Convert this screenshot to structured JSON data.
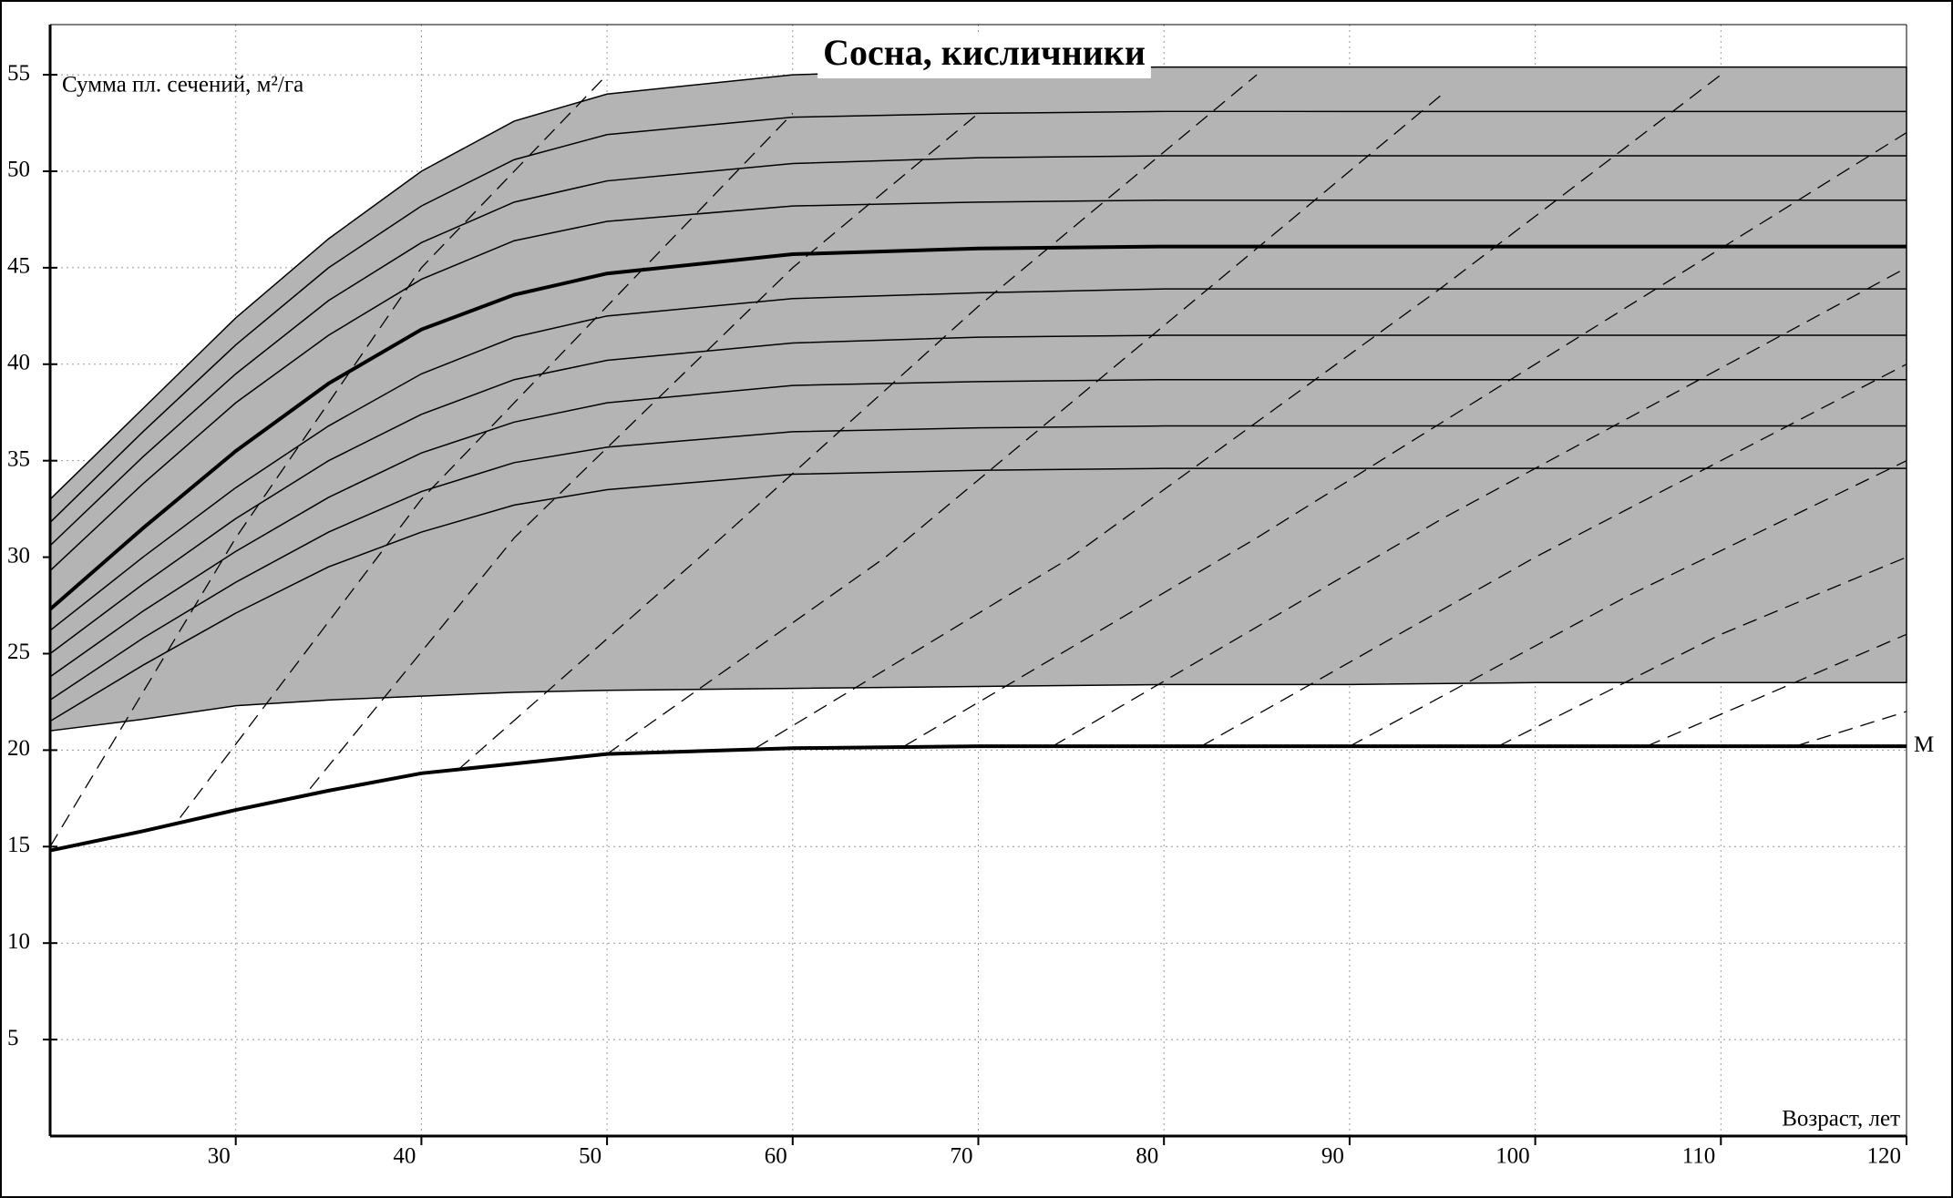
{
  "chart_data": {
    "type": "line",
    "title": "Сосна, кисличники",
    "y_label": "Сумма пл. сечений, м²/га",
    "x_label": "Возраст, лет",
    "xlim": [
      20,
      120
    ],
    "xticks": [
      30,
      40,
      50,
      60,
      70,
      80,
      90,
      100,
      110,
      120
    ],
    "ylim": [
      0,
      57.6
    ],
    "yticks": [
      5,
      10,
      15,
      20,
      25,
      30,
      35,
      40,
      45,
      50,
      55
    ],
    "grid": true,
    "x": [
      20,
      25,
      30,
      35,
      40,
      45,
      50,
      60,
      70,
      80,
      90,
      100,
      110,
      120
    ],
    "band": {
      "color": "#b4b4b4",
      "upper": [
        33,
        37.7,
        42.4,
        46.5,
        50,
        52.6,
        54,
        55,
        55.3,
        55.4,
        55.4,
        55.4,
        55.4,
        55.4
      ],
      "lower": [
        21,
        21.6,
        22.3,
        22.6,
        22.8,
        23,
        23.1,
        23.2,
        23.3,
        23.4,
        23.4,
        23.5,
        23.5,
        23.5
      ]
    },
    "series": [
      {
        "color": "#000",
        "width": 1.5,
        "values": [
          31.8,
          36.5,
          41,
          45,
          48.2,
          50.6,
          51.9,
          52.8,
          53,
          53.1,
          53.1,
          53.1,
          53.1,
          53.1
        ]
      },
      {
        "color": "#000",
        "width": 1.5,
        "values": [
          30.6,
          35.2,
          39.5,
          43.3,
          46.3,
          48.4,
          49.5,
          50.4,
          50.7,
          50.8,
          50.8,
          50.8,
          50.8,
          50.8
        ]
      },
      {
        "color": "#000",
        "width": 1.5,
        "values": [
          29.3,
          33.8,
          38,
          41.5,
          44.4,
          46.4,
          47.4,
          48.2,
          48.4,
          48.5,
          48.5,
          48.5,
          48.5,
          48.5
        ]
      },
      {
        "color": "#000",
        "width": 4,
        "values": [
          27.3,
          31.5,
          35.5,
          39,
          41.8,
          43.6,
          44.7,
          45.7,
          46,
          46.1,
          46.1,
          46.1,
          46.1,
          46.1
        ]
      },
      {
        "color": "#000",
        "width": 1.5,
        "values": [
          26.2,
          30,
          33.6,
          36.8,
          39.5,
          41.4,
          42.5,
          43.4,
          43.7,
          43.9,
          43.9,
          43.9,
          43.9,
          43.9
        ]
      },
      {
        "color": "#000",
        "width": 1.5,
        "values": [
          25,
          28.6,
          32,
          35,
          37.4,
          39.2,
          40.2,
          41.1,
          41.4,
          41.5,
          41.5,
          41.5,
          41.5,
          41.5
        ]
      },
      {
        "color": "#000",
        "width": 1.5,
        "values": [
          23.8,
          27.2,
          30.3,
          33.1,
          35.4,
          37,
          38,
          38.9,
          39.1,
          39.2,
          39.2,
          39.2,
          39.2,
          39.2
        ]
      },
      {
        "color": "#000",
        "width": 1.5,
        "values": [
          22.6,
          25.8,
          28.7,
          31.3,
          33.4,
          34.9,
          35.7,
          36.5,
          36.7,
          36.8,
          36.8,
          36.8,
          36.8,
          36.8
        ]
      },
      {
        "color": "#000",
        "width": 1.5,
        "values": [
          21.5,
          24.4,
          27.1,
          29.5,
          31.3,
          32.7,
          33.5,
          34.3,
          34.5,
          34.6,
          34.6,
          34.6,
          34.6,
          34.6
        ]
      },
      {
        "name": "M",
        "color": "#000",
        "width": 4,
        "values": [
          14.8,
          15.8,
          16.9,
          17.9,
          18.8,
          19.3,
          19.8,
          20.1,
          20.2,
          20.2,
          20.2,
          20.2,
          20.2,
          20.2
        ]
      },
      {
        "color": "#000",
        "width": 1.3,
        "dash": true,
        "x": [
          20,
          30,
          40,
          50
        ],
        "values": [
          15,
          31,
          45,
          55
        ]
      },
      {
        "color": "#000",
        "width": 1.3,
        "dash": true,
        "x": [
          27,
          40,
          50,
          60
        ],
        "values": [
          16.5,
          33,
          43,
          53
        ]
      },
      {
        "color": "#000",
        "width": 1.3,
        "dash": true,
        "x": [
          34,
          45,
          60,
          70
        ],
        "values": [
          18,
          31,
          45,
          53
        ]
      },
      {
        "color": "#000",
        "width": 1.3,
        "dash": true,
        "x": [
          42,
          55,
          70,
          85
        ],
        "values": [
          19,
          30,
          43,
          55
        ]
      },
      {
        "color": "#000",
        "width": 1.3,
        "dash": true,
        "x": [
          50,
          65,
          80,
          95
        ],
        "values": [
          19.8,
          30,
          42,
          54
        ]
      },
      {
        "color": "#000",
        "width": 1.3,
        "dash": true,
        "x": [
          58,
          75,
          95,
          110
        ],
        "values": [
          20.1,
          30,
          44,
          55
        ]
      },
      {
        "color": "#000",
        "width": 1.3,
        "dash": true,
        "x": [
          66,
          85,
          105,
          120
        ],
        "values": [
          20.2,
          31,
          43,
          52
        ]
      },
      {
        "color": "#000",
        "width": 1.3,
        "dash": true,
        "x": [
          74,
          95,
          120
        ],
        "values": [
          20.2,
          32,
          45
        ]
      },
      {
        "color": "#000",
        "width": 1.3,
        "dash": true,
        "x": [
          82,
          100,
          120
        ],
        "values": [
          20.2,
          30,
          40
        ]
      },
      {
        "color": "#000",
        "width": 1.3,
        "dash": true,
        "x": [
          90,
          105,
          120
        ],
        "values": [
          20.2,
          28,
          35
        ]
      },
      {
        "color": "#000",
        "width": 1.3,
        "dash": true,
        "x": [
          98,
          110,
          120
        ],
        "values": [
          20.2,
          26,
          30
        ]
      },
      {
        "color": "#000",
        "width": 1.3,
        "dash": true,
        "x": [
          106,
          120
        ],
        "values": [
          20.2,
          26
        ]
      },
      {
        "color": "#000",
        "width": 1.3,
        "dash": true,
        "x": [
          114,
          120
        ],
        "values": [
          20.2,
          22
        ]
      }
    ]
  }
}
